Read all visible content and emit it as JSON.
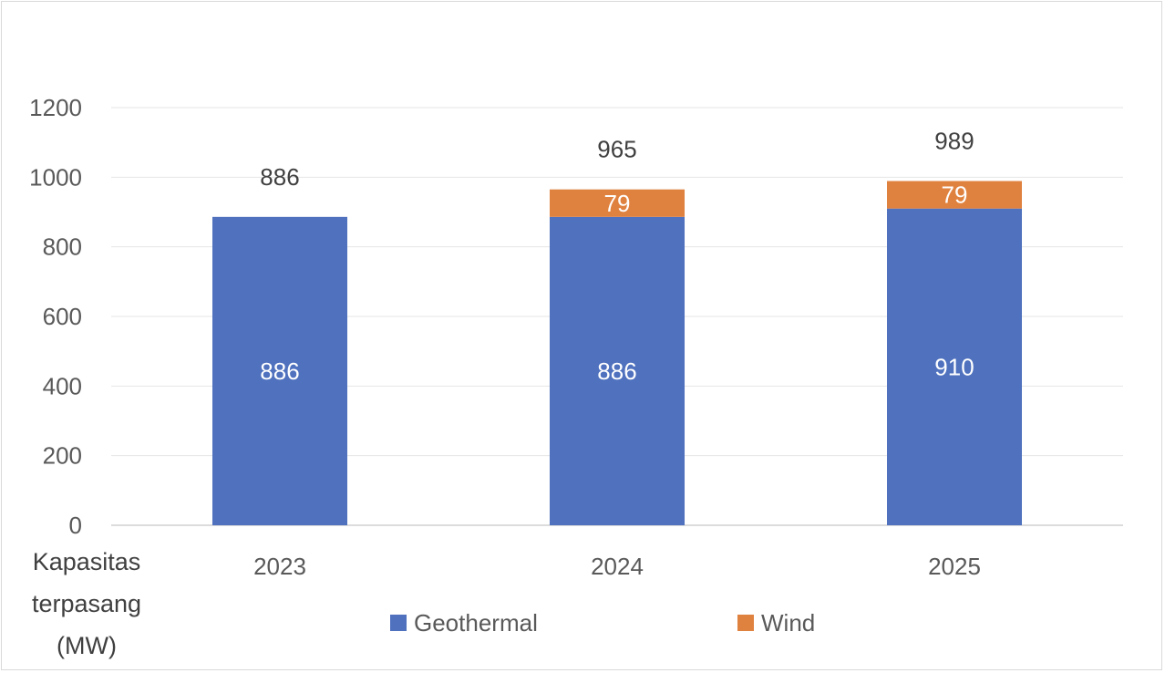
{
  "chart_data": {
    "type": "bar",
    "stacked": true,
    "title": "",
    "xlabel": "",
    "ylabel": "Kapasitas terpasang (MW)",
    "ylabel_lines": [
      "Kapasitas",
      "terpasang",
      "(MW)"
    ],
    "categories": [
      "2023",
      "2024",
      "2025"
    ],
    "series": [
      {
        "name": "Geothermal",
        "color": "#4F71BE",
        "values": [
          886,
          886,
          910
        ]
      },
      {
        "name": "Wind",
        "color": "#E0823F",
        "values": [
          0,
          79,
          79
        ]
      }
    ],
    "totals": [
      886,
      965,
      989
    ],
    "ylim": [
      0,
      1200
    ],
    "yticks": [
      0,
      200,
      400,
      600,
      800,
      1000,
      1200
    ],
    "grid": true,
    "legend": "bottom"
  }
}
